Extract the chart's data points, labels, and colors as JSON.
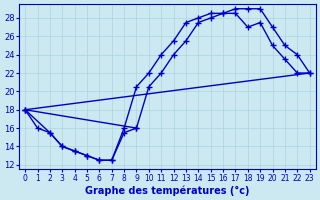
{
  "background_color": "#cce8f0",
  "line_color": "#0000cc",
  "grid_color": "#aad4e0",
  "xlabel": "Graphe des températures (°c)",
  "xlim": [
    -0.5,
    23.5
  ],
  "ylim": [
    11.5,
    29.5
  ],
  "xticks": [
    0,
    1,
    2,
    3,
    4,
    5,
    6,
    7,
    8,
    9,
    10,
    11,
    12,
    13,
    14,
    15,
    16,
    17,
    18,
    19,
    20,
    21,
    22,
    23
  ],
  "yticks": [
    12,
    14,
    16,
    18,
    20,
    22,
    24,
    26,
    28
  ],
  "line1_x": [
    0,
    1,
    2,
    3,
    4,
    5,
    6,
    7,
    8,
    9,
    10,
    11,
    12,
    13,
    14,
    15,
    16,
    17,
    18,
    19,
    20,
    21,
    22,
    23
  ],
  "line1_y": [
    18,
    16,
    15.5,
    14,
    13.5,
    13,
    12.5,
    12.5,
    16,
    20.5,
    22,
    24,
    25.5,
    27.5,
    28,
    28.5,
    28.5,
    29,
    29,
    29,
    27,
    25,
    24,
    22
  ],
  "line2_x": [
    0,
    9,
    10,
    11,
    12,
    13,
    14,
    15,
    16,
    17,
    18,
    19,
    20,
    21,
    22,
    23
  ],
  "line2_y": [
    18,
    16,
    20.5,
    22,
    24,
    25.5,
    27.5,
    28,
    28.5,
    28.5,
    27,
    27.5,
    25,
    23.5,
    22,
    22
  ],
  "line3_x": [
    0,
    2,
    3,
    4,
    5,
    6,
    7,
    8,
    9
  ],
  "line3_y": [
    18,
    15.5,
    14,
    13.5,
    13,
    12.5,
    12.5,
    15.5,
    16
  ],
  "line4_x": [
    0,
    23
  ],
  "line4_y": [
    18,
    22
  ]
}
